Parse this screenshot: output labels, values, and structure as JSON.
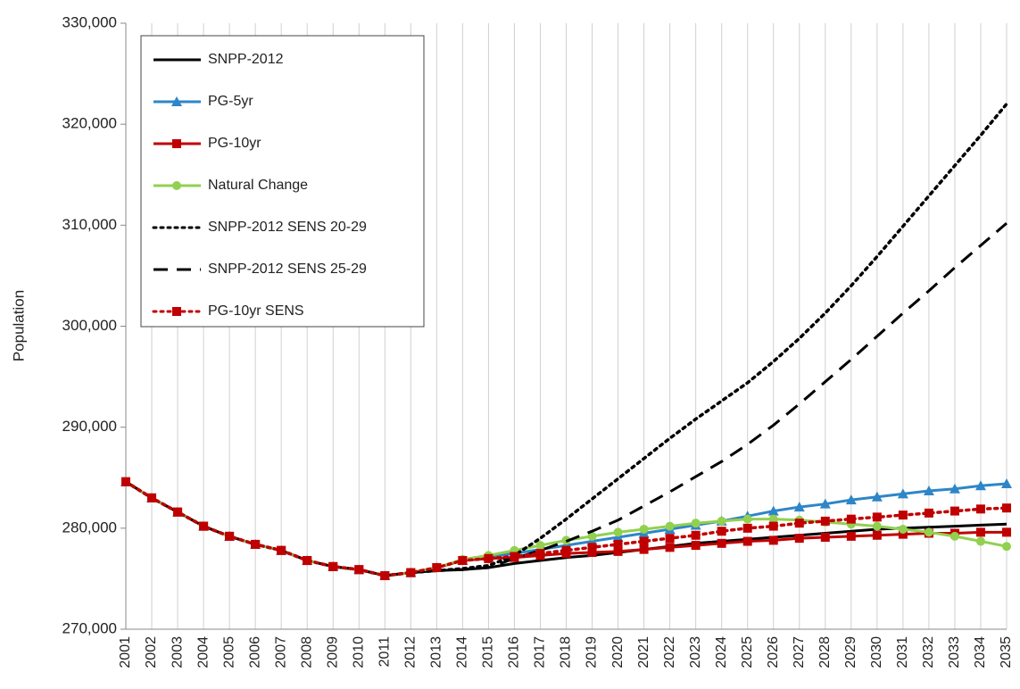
{
  "chart_data": {
    "type": "line",
    "y_label": "Population",
    "categories": [
      "2001",
      "2002",
      "2003",
      "2004",
      "2005",
      "2006",
      "2007",
      "2008",
      "2009",
      "2010",
      "2011",
      "2012",
      "2013",
      "2014",
      "2015",
      "2016",
      "2017",
      "2018",
      "2019",
      "2020",
      "2021",
      "2022",
      "2023",
      "2024",
      "2025",
      "2026",
      "2027",
      "2028",
      "2029",
      "2030",
      "2031",
      "2032",
      "2033",
      "2034",
      "2035"
    ],
    "ylim": [
      270000,
      330000
    ],
    "yticks": [
      {
        "value": 270000,
        "label": "270,000"
      },
      {
        "value": 280000,
        "label": "280,000"
      },
      {
        "value": 290000,
        "label": "290,000"
      },
      {
        "value": 300000,
        "label": "300,000"
      },
      {
        "value": 310000,
        "label": "310,000"
      },
      {
        "value": 320000,
        "label": "320,000"
      },
      {
        "value": 330000,
        "label": "330,000"
      }
    ],
    "grid": "vertical",
    "legend": "upper left",
    "series": [
      {
        "name": "SNPP-2012",
        "color": "#000000",
        "dash": "solid",
        "marker": null,
        "values": [
          284600,
          283000,
          281600,
          280200,
          279200,
          278400,
          277800,
          276800,
          276200,
          275900,
          275300,
          275600,
          275800,
          275900,
          276100,
          276500,
          276800,
          277100,
          277300,
          277600,
          277900,
          278200,
          278500,
          278700,
          278900,
          279100,
          279300,
          279500,
          279700,
          279900,
          280000,
          280100,
          280200,
          280300,
          280400
        ]
      },
      {
        "name": "PG-5yr",
        "color": "#2e86c8",
        "dash": "solid",
        "marker": "triangle",
        "values": [
          284600,
          283000,
          281600,
          280200,
          279200,
          278400,
          277800,
          276800,
          276200,
          275900,
          275300,
          275600,
          276100,
          276800,
          277200,
          277500,
          277900,
          278300,
          278700,
          279100,
          279500,
          279900,
          280300,
          280700,
          281200,
          281700,
          282100,
          282400,
          282800,
          283100,
          283400,
          283700,
          283900,
          284200,
          284400
        ]
      },
      {
        "name": "PG-10yr",
        "color": "#c00000",
        "dash": "solid",
        "marker": "square",
        "values": [
          284600,
          283000,
          281600,
          280200,
          279200,
          278400,
          277800,
          276800,
          276200,
          275900,
          275300,
          275600,
          276100,
          276800,
          277000,
          277100,
          277300,
          277500,
          277600,
          277700,
          277900,
          278100,
          278300,
          278500,
          278700,
          278800,
          279000,
          279100,
          279200,
          279300,
          279400,
          279500,
          279500,
          279600,
          279600
        ]
      },
      {
        "name": "Natural Change",
        "color": "#92d050",
        "dash": "solid",
        "marker": "circle",
        "values": [
          284600,
          283000,
          281600,
          280200,
          279200,
          278400,
          277800,
          276800,
          276200,
          275900,
          275300,
          275600,
          276100,
          276900,
          277300,
          277800,
          278300,
          278800,
          279200,
          279600,
          279900,
          280200,
          280500,
          280700,
          280900,
          280900,
          280800,
          280600,
          280400,
          280200,
          279900,
          279600,
          279200,
          278700,
          278200
        ]
      },
      {
        "name": "SNPP-2012 SENS 20-29",
        "color": "#000000",
        "dash": "dotted",
        "marker": null,
        "values": [
          284600,
          283000,
          281600,
          280200,
          279200,
          278400,
          277800,
          276800,
          276200,
          275900,
          275300,
          275600,
          275800,
          276000,
          276300,
          277300,
          279000,
          280900,
          282900,
          284900,
          286900,
          288900,
          290800,
          292600,
          294400,
          296500,
          298800,
          301300,
          304000,
          306900,
          309900,
          312900,
          315900,
          318900,
          322000
        ]
      },
      {
        "name": "SNPP-2012 SENS 25-29",
        "color": "#000000",
        "dash": "dashed",
        "marker": null,
        "values": [
          284600,
          283000,
          281600,
          280200,
          279200,
          278400,
          277800,
          276800,
          276200,
          275900,
          275300,
          275600,
          275800,
          275900,
          276100,
          277000,
          277800,
          278700,
          279700,
          280800,
          282200,
          283600,
          285100,
          286600,
          288300,
          290200,
          292300,
          294500,
          296700,
          299000,
          301300,
          303500,
          305800,
          308000,
          310200
        ]
      },
      {
        "name": "PG-10yr SENS",
        "color": "#c00000",
        "dash": "dotted",
        "marker": "square",
        "values": [
          284600,
          283000,
          281600,
          280200,
          279200,
          278400,
          277800,
          276800,
          276200,
          275900,
          275300,
          275600,
          276100,
          276800,
          277000,
          277200,
          277500,
          277800,
          278100,
          278400,
          278700,
          279000,
          279300,
          279700,
          280000,
          280200,
          280500,
          280700,
          280900,
          281100,
          281300,
          281500,
          281700,
          281900,
          282000
        ]
      }
    ]
  }
}
